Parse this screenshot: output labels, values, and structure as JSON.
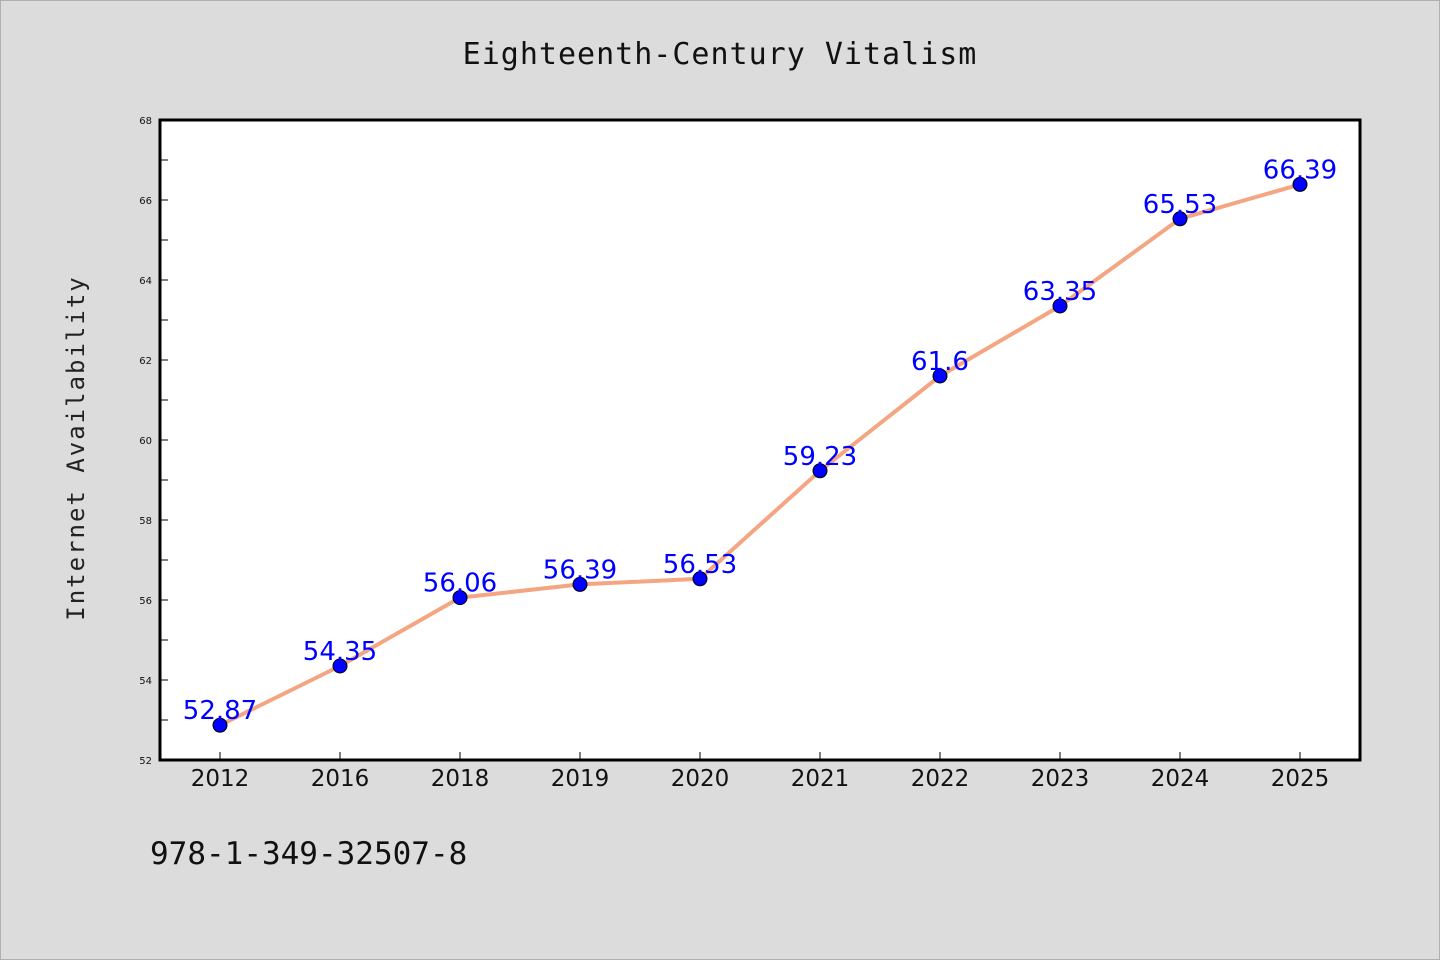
{
  "chart_data": {
    "type": "line",
    "title": "Eighteenth-Century Vitalism",
    "ylabel": "Internet Availability",
    "xlabel": "",
    "categories": [
      "2012",
      "2016",
      "2018",
      "2019",
      "2020",
      "2021",
      "2022",
      "2023",
      "2024",
      "2025"
    ],
    "series": [
      {
        "values": [
          52.87,
          54.35,
          56.06,
          56.39,
          56.53,
          59.23,
          61.6,
          63.35,
          65.53,
          66.39
        ],
        "data_labels": [
          "52.87",
          "54.35",
          "56.06",
          "56.39",
          "56.53",
          "59.23",
          "61.6",
          "63.35",
          "65.53",
          "66.39"
        ],
        "line_color": "#f4a582",
        "marker_color": "#0000ff"
      }
    ],
    "ylim": [
      52,
      68
    ],
    "yticks": [
      "52",
      "54",
      "56",
      "58",
      "60",
      "62",
      "64",
      "66",
      "68"
    ],
    "grid": false,
    "legend": "none"
  },
  "footer": {
    "text": "978-1-349-32507-8"
  }
}
